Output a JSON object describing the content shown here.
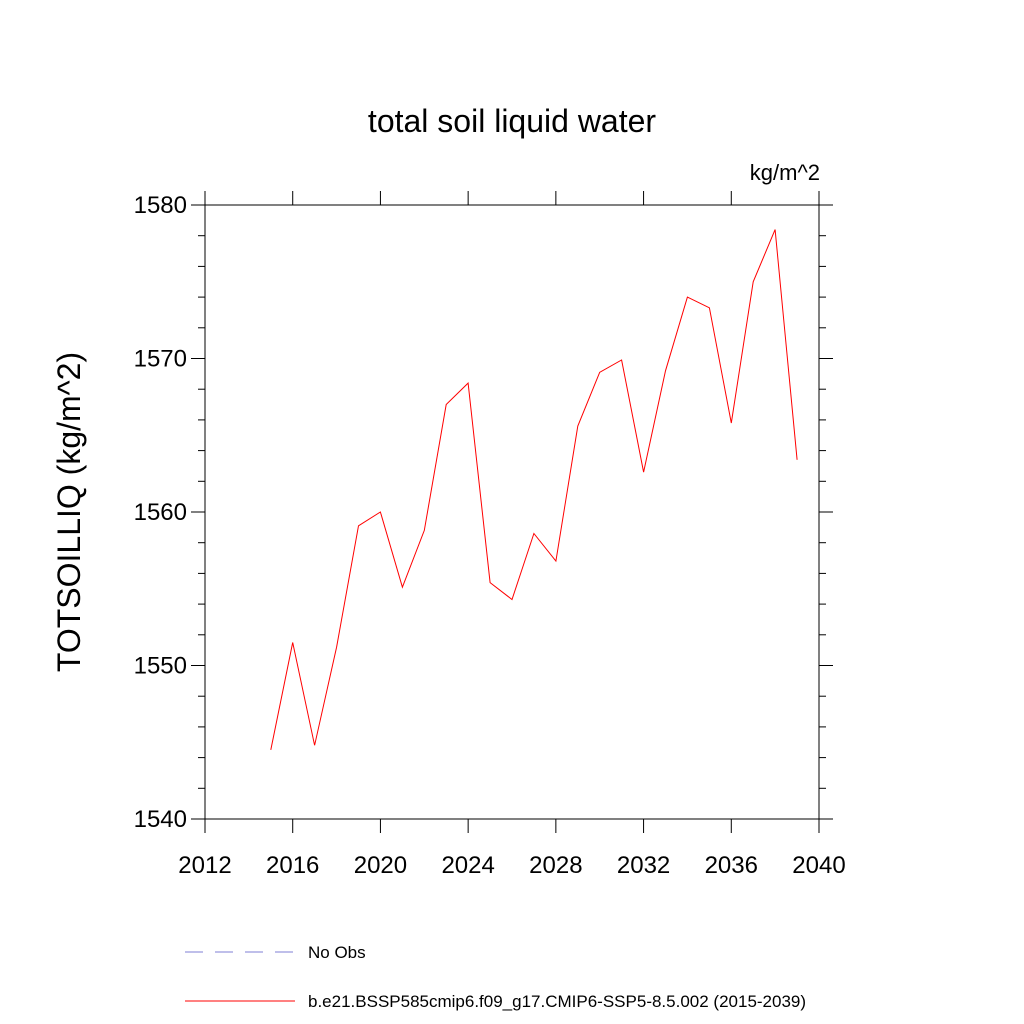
{
  "chart_data": {
    "type": "line",
    "title": "total soil liquid water",
    "units_label": "kg/m^2",
    "ylabel": "TOTSOILLIQ  (kg/m^2)",
    "xlabel": "",
    "xlim": [
      2012,
      2040
    ],
    "ylim": [
      1540,
      1580
    ],
    "x_ticks": [
      2012,
      2016,
      2020,
      2024,
      2028,
      2032,
      2036,
      2040
    ],
    "y_ticks": [
      1540,
      1550,
      1560,
      1570,
      1580
    ],
    "grid": false,
    "legend_position": "bottom",
    "series": [
      {
        "name": "No Obs",
        "color": "#7f7fd6",
        "dash": "dashed",
        "x": [],
        "values": []
      },
      {
        "name": "b.e21.BSSP585cmip6.f09_g17.CMIP6-SSP5-8.5.002 (2015-2039)",
        "color": "#ff0000",
        "dash": "solid",
        "x": [
          2015,
          2016,
          2017,
          2018,
          2019,
          2020,
          2021,
          2022,
          2023,
          2024,
          2025,
          2026,
          2027,
          2028,
          2029,
          2030,
          2031,
          2032,
          2033,
          2034,
          2035,
          2036,
          2037,
          2038,
          2039
        ],
        "values": [
          1544.5,
          1551.5,
          1544.8,
          1551.2,
          1559.1,
          1560.0,
          1555.1,
          1558.8,
          1567.0,
          1568.4,
          1555.4,
          1554.3,
          1558.6,
          1556.8,
          1565.6,
          1569.1,
          1569.9,
          1562.6,
          1569.2,
          1574.0,
          1573.3,
          1565.8,
          1575.0,
          1578.4,
          1563.4
        ]
      }
    ]
  }
}
